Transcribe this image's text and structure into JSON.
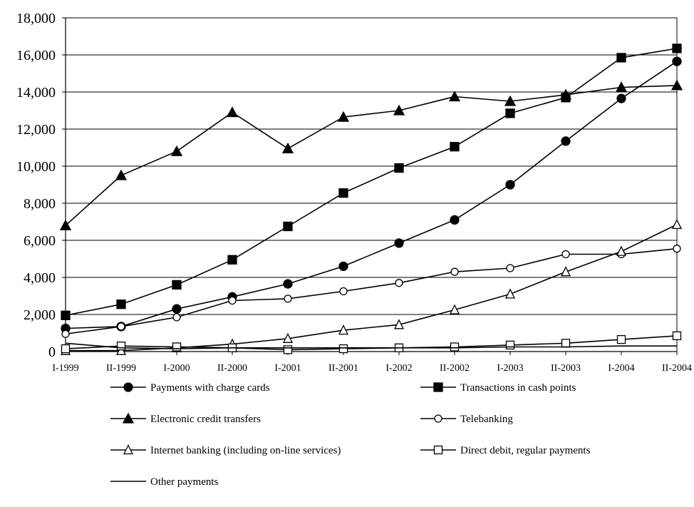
{
  "chart_data": {
    "type": "line",
    "title": "",
    "xlabel": "",
    "ylabel": "",
    "categories": [
      "I-1999",
      "II-1999",
      "I-2000",
      "II-2000",
      "I-2001",
      "II-2001",
      "I-2002",
      "II-2002",
      "I-2003",
      "II-2003",
      "I-2004",
      "II-2004"
    ],
    "ylim": [
      0,
      18000
    ],
    "yticks": [
      0,
      2000,
      4000,
      6000,
      8000,
      10000,
      12000,
      14000,
      16000,
      18000
    ],
    "ytick_labels": [
      "0",
      "2,000",
      "4,000",
      "6,000",
      "8,000",
      "10,000",
      "12,000",
      "14,000",
      "16,000",
      "18,000"
    ],
    "grid": "horizontal",
    "legend_position": "bottom",
    "line_color": "#000000",
    "series": [
      {
        "name": "Payments with charge cards",
        "marker": "filled-circle",
        "values": [
          1250,
          1350,
          2300,
          2950,
          3650,
          4600,
          5850,
          7100,
          9000,
          11350,
          13650,
          15650
        ]
      },
      {
        "name": "Transactions in cash points",
        "marker": "filled-square",
        "values": [
          1950,
          2550,
          3600,
          4950,
          6750,
          8550,
          9900,
          11050,
          12850,
          13700,
          15850,
          16350
        ]
      },
      {
        "name": "Electronic credit transfers",
        "marker": "filled-triangle",
        "values": [
          6800,
          9500,
          10800,
          12900,
          10950,
          12650,
          13000,
          13750,
          13500,
          13850,
          14250,
          14350
        ]
      },
      {
        "name": "Telebanking",
        "marker": "open-circle",
        "values": [
          950,
          1350,
          1850,
          2750,
          2850,
          3250,
          3700,
          4300,
          4500,
          5250,
          5250,
          5550
        ]
      },
      {
        "name": "Internet banking (including on-line services)",
        "marker": "open-triangle",
        "values": [
          50,
          50,
          200,
          400,
          700,
          1150,
          1450,
          2250,
          3100,
          4300,
          5400,
          6850
        ]
      },
      {
        "name": "Direct debit, regular payments",
        "marker": "open-square",
        "values": [
          150,
          300,
          250,
          200,
          100,
          150,
          200,
          250,
          350,
          450,
          650,
          850
        ]
      },
      {
        "name": "Other payments",
        "marker": "none",
        "values": [
          450,
          200,
          150,
          200,
          200,
          200,
          200,
          200,
          250,
          250,
          300,
          300
        ]
      }
    ]
  }
}
